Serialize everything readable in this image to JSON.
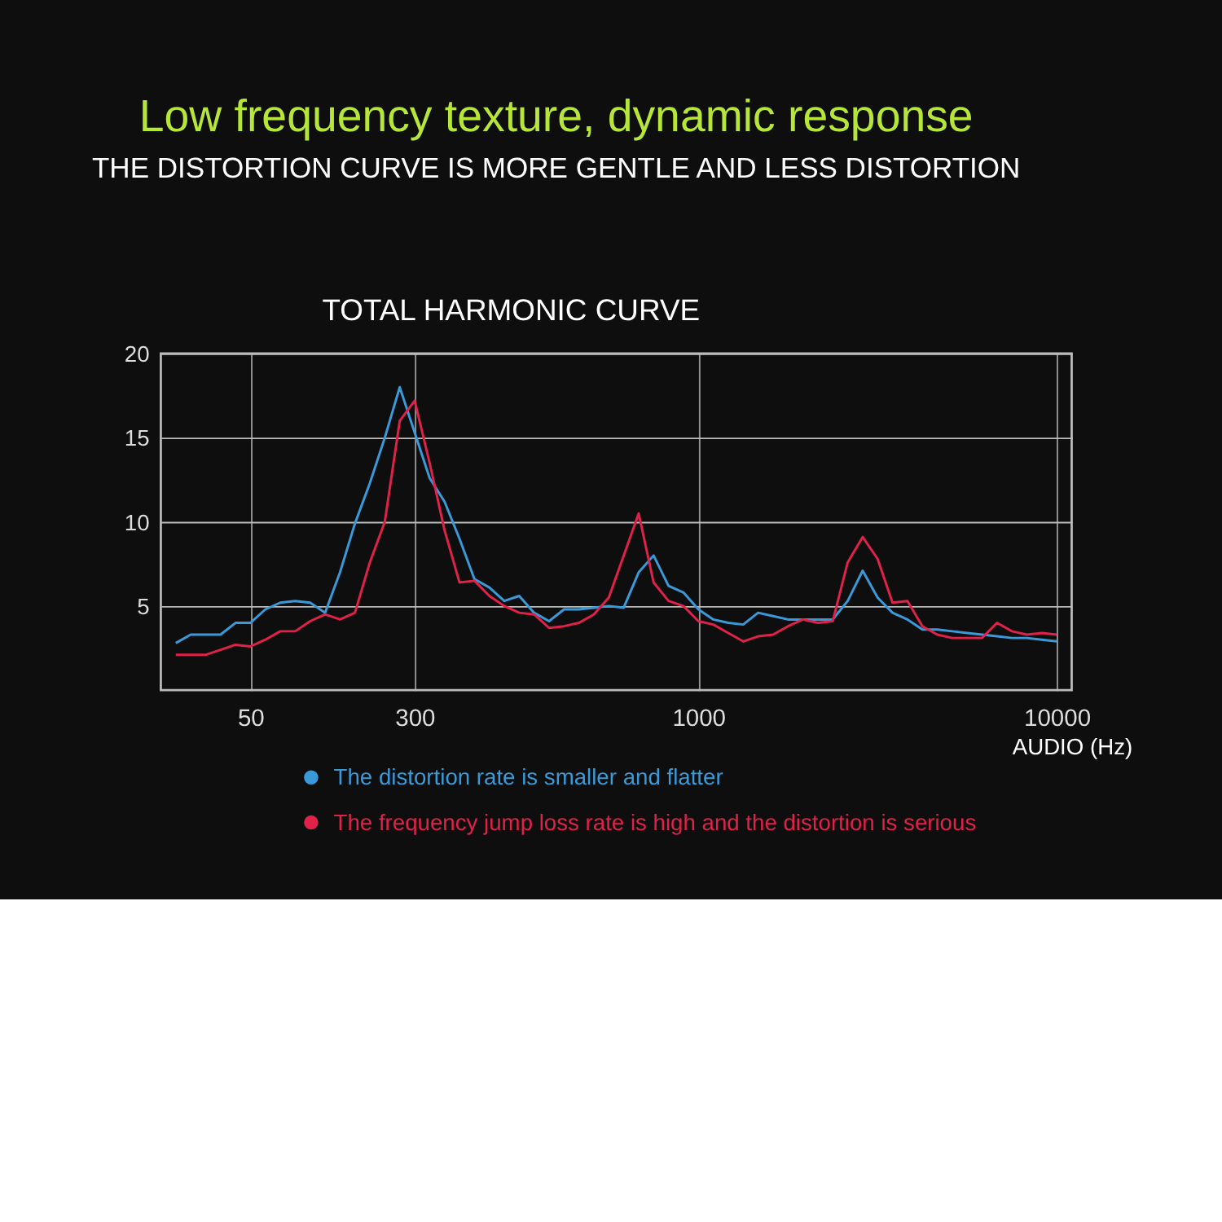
{
  "chart_data": {
    "type": "line",
    "title": "Low frequency texture, dynamic response",
    "subtitle": "THE DISTORTION CURVE IS MORE GENTLE AND LESS DISTORTION",
    "annotations": [
      "TOTAL HARMONIC CURVE"
    ],
    "xlabel": "AUDIO (Hz)",
    "categories": [
      null,
      null,
      null,
      null,
      null,
      "50",
      null,
      null,
      null,
      null,
      null,
      null,
      null,
      null,
      null,
      null,
      "300",
      null,
      null,
      null,
      null,
      null,
      null,
      null,
      null,
      null,
      null,
      null,
      null,
      null,
      null,
      null,
      null,
      null,
      null,
      "1000",
      null,
      null,
      null,
      null,
      null,
      null,
      null,
      null,
      null,
      null,
      null,
      null,
      null,
      null,
      null,
      null,
      null,
      null,
      null,
      null,
      null,
      null,
      null,
      "10000"
    ],
    "series": [
      {
        "name": "The distortion rate is smaller and flatter",
        "color": "#3a9ad9",
        "values": [
          2.8,
          3.3,
          3.3,
          3.3,
          4.0,
          4.0,
          4.8,
          5.2,
          5.3,
          5.2,
          4.6,
          7.0,
          9.9,
          12.3,
          15.0,
          18.0,
          15.3,
          12.6,
          11.2,
          9.0,
          6.6,
          6.1,
          5.3,
          5.6,
          4.6,
          4.1,
          4.8,
          4.8,
          4.9,
          5.0,
          4.9,
          7.0,
          8.0,
          6.2,
          5.8,
          4.8,
          4.2,
          4.0,
          3.9,
          4.6,
          4.4,
          4.2,
          4.2,
          4.2,
          4.2,
          5.3,
          7.1,
          5.5,
          4.6,
          4.2,
          3.6,
          3.6,
          3.5,
          3.4,
          3.3,
          3.2,
          3.1,
          3.1,
          3.0,
          2.9
        ]
      },
      {
        "name": "The frequency jump loss rate is high and the distortion is serious",
        "color": "#e0224a",
        "values": [
          2.1,
          2.1,
          2.1,
          2.4,
          2.7,
          2.6,
          3.0,
          3.5,
          3.5,
          4.1,
          4.5,
          4.2,
          4.6,
          7.6,
          10.0,
          16.0,
          17.2,
          13.5,
          9.5,
          6.4,
          6.5,
          5.6,
          5.0,
          4.6,
          4.5,
          3.7,
          3.8,
          4.0,
          4.5,
          5.5,
          8.0,
          10.5,
          6.4,
          5.3,
          5.0,
          4.1,
          3.9,
          3.4,
          2.9,
          3.2,
          3.3,
          3.8,
          4.2,
          4.0,
          4.1,
          7.6,
          9.1,
          7.8,
          5.2,
          5.3,
          3.8,
          3.3,
          3.1,
          3.1,
          3.1,
          4.0,
          3.5,
          3.3,
          3.4,
          3.3
        ]
      }
    ],
    "ylim": [
      0,
      20
    ],
    "yticks": [
      5,
      10,
      15,
      20
    ],
    "grid": true,
    "legend": "bottom",
    "marker": "none",
    "line_style": "solid"
  }
}
